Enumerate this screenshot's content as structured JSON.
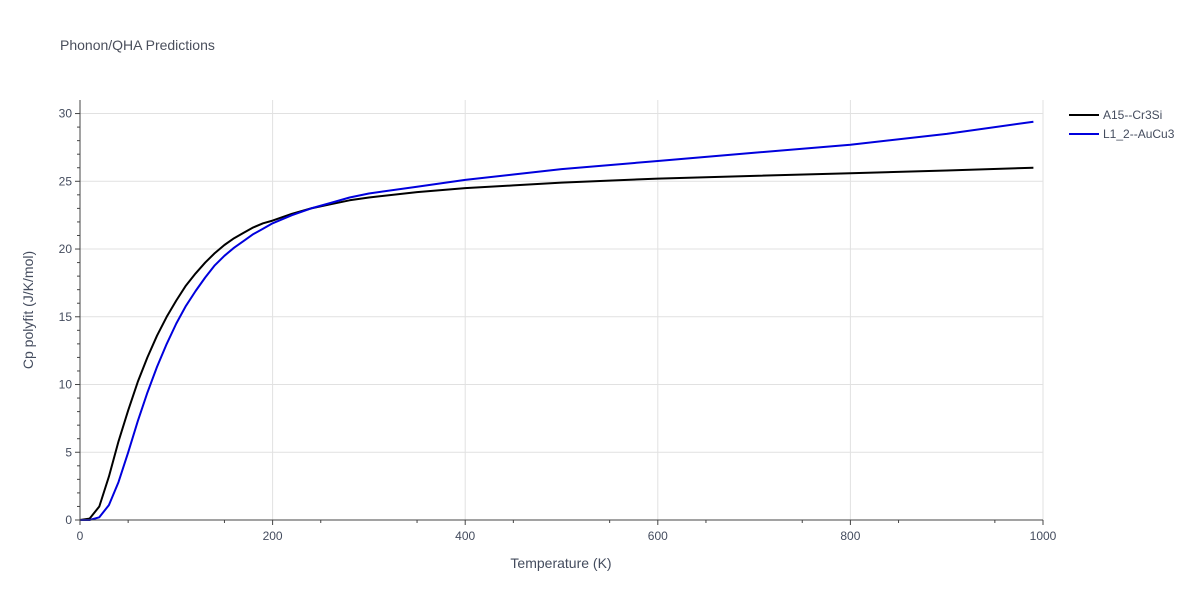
{
  "chart_data": {
    "type": "line",
    "title": "Phonon/QHA Predictions",
    "xlabel": "Temperature (K)",
    "ylabel": "Cp polyfit (J/K/mol)",
    "xlim": [
      0,
      1000
    ],
    "ylim": [
      0,
      31
    ],
    "xticks": [
      0,
      200,
      400,
      600,
      800,
      1000
    ],
    "yticks": [
      0,
      5,
      10,
      15,
      20,
      25,
      30
    ],
    "grid": true,
    "legend_position": "top-right",
    "series": [
      {
        "name": "A15--Cr3Si",
        "color": "#000000",
        "x": [
          0,
          10,
          20,
          30,
          40,
          50,
          60,
          70,
          80,
          90,
          100,
          110,
          120,
          130,
          140,
          150,
          160,
          170,
          180,
          190,
          200,
          220,
          240,
          260,
          280,
          300,
          350,
          400,
          450,
          500,
          600,
          700,
          800,
          900,
          990
        ],
        "y": [
          0,
          0.1,
          1.0,
          3.2,
          5.8,
          8.1,
          10.2,
          12.0,
          13.6,
          15.0,
          16.2,
          17.3,
          18.2,
          19.0,
          19.7,
          20.3,
          20.8,
          21.2,
          21.6,
          21.9,
          22.1,
          22.6,
          23.0,
          23.3,
          23.6,
          23.8,
          24.2,
          24.5,
          24.7,
          24.9,
          25.2,
          25.4,
          25.6,
          25.8,
          26.0
        ]
      },
      {
        "name": "L1_2--AuCu3",
        "color": "#0000dd",
        "x": [
          0,
          10,
          20,
          30,
          40,
          50,
          60,
          70,
          80,
          90,
          100,
          110,
          120,
          130,
          140,
          150,
          160,
          170,
          180,
          190,
          200,
          220,
          240,
          260,
          280,
          300,
          350,
          400,
          450,
          500,
          600,
          700,
          800,
          900,
          990
        ],
        "y": [
          0,
          0,
          0.2,
          1.1,
          2.8,
          5.0,
          7.3,
          9.4,
          11.3,
          13.0,
          14.5,
          15.8,
          16.9,
          17.9,
          18.8,
          19.5,
          20.1,
          20.6,
          21.1,
          21.5,
          21.9,
          22.5,
          23.0,
          23.4,
          23.8,
          24.1,
          24.6,
          25.1,
          25.5,
          25.9,
          26.5,
          27.1,
          27.7,
          28.5,
          29.4
        ]
      }
    ]
  }
}
